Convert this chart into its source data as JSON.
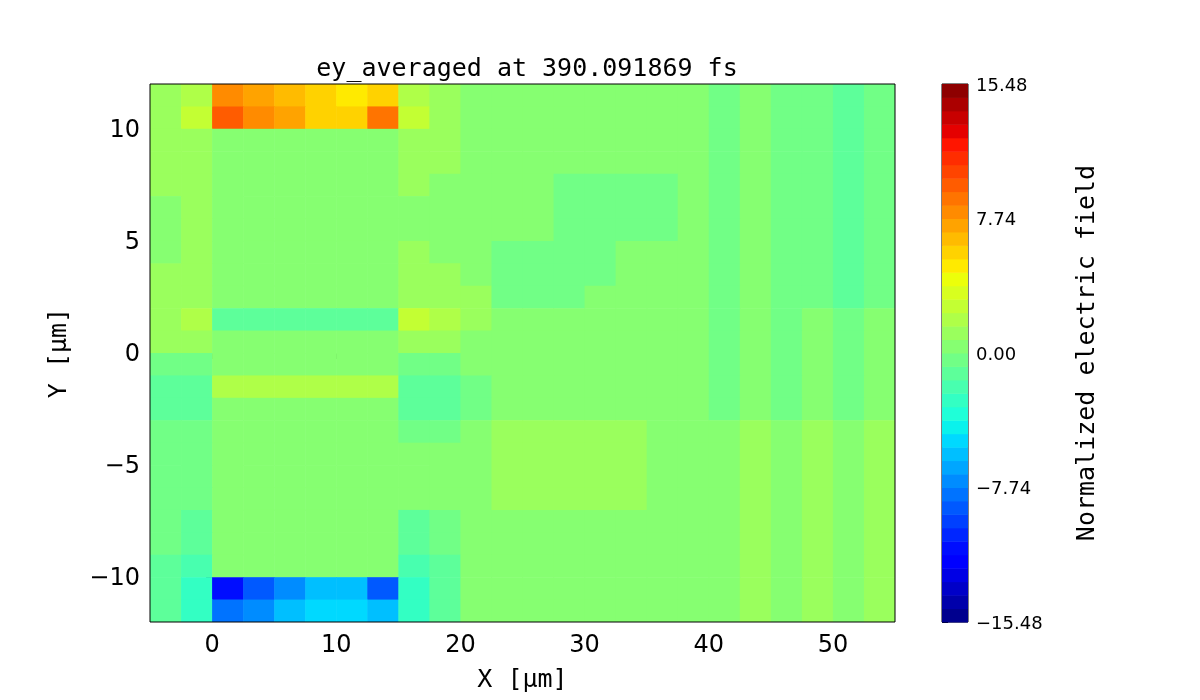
{
  "chart_data": {
    "type": "heatmap",
    "title": "ey_averaged at 390.091869 fs",
    "xlabel": "X [μm]",
    "ylabel": "Y [μm]",
    "clabel": "Normalized electric field",
    "xlim": [
      -5,
      55
    ],
    "xticks": [
      0,
      10,
      20,
      30,
      40,
      50
    ],
    "ylim": [
      -12,
      12
    ],
    "yticks": [
      {
        "value": -10,
        "label": "−10"
      },
      {
        "value": -5,
        "label": "−5"
      },
      0,
      5,
      10
    ],
    "clim": [
      -15.48,
      15.48
    ],
    "cticks": [
      {
        "value": -15.48,
        "label": "−15.48"
      },
      {
        "value": -7.74,
        "label": "−7.74"
      },
      {
        "value": 0,
        "label": "0.00"
      },
      7.74,
      15.48
    ],
    "cells": [
      [
        0.8,
        2,
        8,
        7.5,
        6.5,
        5.5,
        5,
        6,
        2,
        0.8,
        0.4,
        0.4,
        0.4,
        0.4,
        0.4,
        0.4,
        0.4,
        0.4,
        -0.4,
        0.4,
        -0.4,
        -0.4,
        -1.2,
        -0.4
      ],
      [
        1.2,
        2.5,
        10,
        8,
        7,
        6,
        5.5,
        9,
        2.5,
        1.2,
        0.4,
        0.4,
        0.4,
        0.4,
        0.4,
        0.4,
        0.4,
        0.4,
        -0.4,
        0.4,
        -0.4,
        -0.4,
        -1.2,
        -0.4
      ],
      [
        1.2,
        1.5,
        0.4,
        0.4,
        0.4,
        0.4,
        0.4,
        0.4,
        1.5,
        0.8,
        0.4,
        0.4,
        0.4,
        0.4,
        0.4,
        0.4,
        0.4,
        0.4,
        -0.4,
        0.4,
        -0.4,
        -0.4,
        -1.2,
        -0.4
      ],
      [
        1.2,
        1.2,
        0.4,
        0.4,
        0.4,
        0.4,
        0.4,
        0.4,
        1.2,
        0.8,
        0.4,
        0.4,
        0.4,
        0.4,
        0.4,
        0.4,
        0.4,
        0.4,
        -0.4,
        0.4,
        -0.4,
        -0.4,
        -1.2,
        -0.4
      ],
      [
        0.8,
        0.8,
        0.4,
        0.4,
        0.4,
        0.4,
        0.4,
        0.4,
        0.8,
        0.4,
        0.4,
        0.4,
        0.4,
        -0.4,
        -0.4,
        -0.4,
        -0.4,
        0.4,
        -0.4,
        0.4,
        -0.4,
        -0.4,
        -1.2,
        -0.4
      ],
      [
        0.4,
        0.8,
        0.4,
        0.4,
        0.4,
        0.4,
        0.4,
        0.4,
        0.4,
        0.4,
        0.4,
        0.4,
        0.4,
        -0.4,
        -0.4,
        -0.4,
        -0.4,
        0.4,
        -0.4,
        0.4,
        -0.4,
        -0.4,
        -1.2,
        -0.4
      ],
      [
        0.4,
        0.8,
        0.4,
        0.4,
        0.4,
        0.4,
        0.4,
        0.4,
        0.4,
        0.4,
        0.4,
        0.4,
        0.4,
        -0.4,
        -0.4,
        -0.4,
        -0.4,
        0.4,
        -0.4,
        0.4,
        -0.4,
        -0.4,
        -1.2,
        -0.4
      ],
      [
        0.4,
        0.8,
        0.4,
        0.4,
        0.4,
        0.4,
        0.4,
        0.4,
        0.8,
        0.4,
        0.4,
        -0.4,
        -0.4,
        -0.4,
        -0.4,
        0.4,
        0.4,
        0.4,
        -0.4,
        0.4,
        -0.4,
        -0.4,
        -1.2,
        -0.4
      ],
      [
        0.8,
        0.8,
        0.4,
        0.4,
        0.4,
        0.4,
        0.4,
        0.4,
        0.8,
        0.8,
        0.4,
        -0.4,
        -0.4,
        -0.4,
        -0.4,
        0.4,
        0.4,
        0.4,
        -0.4,
        0.4,
        -0.4,
        -0.4,
        -1.2,
        -0.4
      ],
      [
        0.8,
        1.2,
        0.4,
        0.4,
        0.4,
        0.4,
        0.4,
        0.4,
        1.5,
        1.5,
        0.8,
        -0.4,
        -0.4,
        -0.4,
        0.4,
        0.4,
        0.4,
        0.4,
        -0.4,
        0.4,
        -0.4,
        -0.4,
        -1.2,
        -0.4
      ],
      [
        1.5,
        2,
        -1.5,
        -1.5,
        -1.5,
        -1.5,
        -1.5,
        -1.5,
        2.5,
        2,
        1.2,
        0.4,
        0.4,
        0.4,
        0.4,
        0.4,
        0.4,
        0.4,
        -0.4,
        0.4,
        -0.4,
        0.4,
        -0.4,
        0.4
      ],
      [
        1.2,
        1.2,
        0.4,
        0.4,
        0.4,
        0.4,
        0.4,
        0.4,
        1.2,
        0.8,
        0.4,
        0.4,
        0.4,
        0.4,
        0.4,
        0.4,
        0.4,
        0.4,
        -0.4,
        0.4,
        -0.4,
        0.4,
        -0.4,
        0.4
      ],
      [
        -0.4,
        -0.4,
        0.4,
        0.4,
        0.4,
        0.4,
        0.4,
        0.4,
        -0.4,
        -0.4,
        0.4,
        0.4,
        0.4,
        0.4,
        0.4,
        0.4,
        0.4,
        0.4,
        -0.4,
        0.4,
        -0.4,
        0.4,
        -0.4,
        0.4
      ],
      [
        -1.2,
        -1.5,
        2,
        2,
        2,
        2,
        2,
        2,
        -1.5,
        -1.2,
        -0.4,
        0.4,
        0.4,
        0.4,
        0.4,
        0.4,
        0.4,
        0.4,
        -0.4,
        0.4,
        -0.4,
        0.4,
        -0.4,
        0.4
      ],
      [
        -1.2,
        -1.2,
        0.4,
        0.4,
        0.4,
        0.4,
        0.4,
        0.4,
        -1.2,
        -1.2,
        -0.4,
        0.4,
        0.4,
        0.4,
        0.4,
        0.4,
        0.4,
        0.4,
        -0.4,
        0.4,
        -0.4,
        0.4,
        -0.4,
        0.4
      ],
      [
        -0.4,
        -0.4,
        0.4,
        0.4,
        0.4,
        0.4,
        0.4,
        0.4,
        -0.4,
        -0.4,
        0.4,
        1.2,
        1.2,
        1.2,
        1.2,
        1.2,
        0.4,
        0.4,
        0.4,
        1.2,
        0.4,
        1.2,
        0.4,
        1.2
      ],
      [
        -0.4,
        -0.4,
        0.4,
        0.4,
        0.4,
        0.4,
        0.4,
        0.4,
        0.4,
        0.4,
        0.4,
        1.2,
        1.2,
        1.2,
        1.2,
        1.2,
        0.4,
        0.4,
        0.4,
        1.2,
        0.4,
        1.2,
        0.4,
        1.2
      ],
      [
        -0.4,
        -0.4,
        0.4,
        0.4,
        0.4,
        0.4,
        0.4,
        0.4,
        0.4,
        0.4,
        0.4,
        1.2,
        1.2,
        1.2,
        1.2,
        1.2,
        0.4,
        0.4,
        0.4,
        1.2,
        0.4,
        1.2,
        0.4,
        1.2
      ],
      [
        -0.4,
        -0.4,
        0.4,
        0.4,
        0.4,
        0.4,
        0.4,
        0.4,
        0.4,
        0.4,
        0.4,
        1.2,
        1.2,
        1.2,
        1.2,
        1.2,
        0.4,
        0.4,
        0.4,
        1.2,
        0.4,
        1.2,
        0.4,
        1.2
      ],
      [
        -0.4,
        -0.8,
        0.4,
        0.4,
        0.4,
        0.4,
        0.4,
        0.4,
        -0.8,
        -0.4,
        0.4,
        0.4,
        0.4,
        0.4,
        0.4,
        0.4,
        0.4,
        0.4,
        0.4,
        1.2,
        0.4,
        1.2,
        0.4,
        1.2
      ],
      [
        -0.4,
        -0.8,
        0.4,
        0.4,
        0.4,
        0.4,
        0.4,
        0.4,
        -0.8,
        -0.4,
        0.4,
        0.4,
        0.4,
        0.4,
        0.4,
        0.4,
        0.4,
        0.4,
        0.4,
        1.2,
        0.4,
        1.2,
        0.4,
        1.2
      ],
      [
        -1.2,
        -2,
        0.4,
        0.4,
        0.4,
        0.4,
        0.4,
        0.4,
        -2,
        -0.8,
        0.4,
        0.4,
        0.4,
        0.4,
        0.4,
        0.4,
        0.4,
        0.4,
        0.4,
        1.2,
        0.4,
        1.2,
        0.4,
        1.2
      ],
      [
        -1.5,
        -3,
        -11,
        -9,
        -7,
        -6,
        -6,
        -9,
        -3,
        -1.2,
        0.4,
        0.4,
        0.4,
        0.4,
        0.4,
        0.4,
        0.4,
        0.4,
        0.4,
        1.2,
        0.4,
        1.2,
        0.4,
        1.2
      ],
      [
        -1.5,
        -3,
        -8,
        -7,
        -6,
        -5,
        -5,
        -6,
        -3,
        -1.2,
        0.4,
        0.4,
        0.4,
        0.4,
        0.4,
        0.4,
        0.4,
        0.4,
        0.4,
        1.2,
        0.4,
        1.2,
        0.4,
        1.2
      ]
    ]
  }
}
